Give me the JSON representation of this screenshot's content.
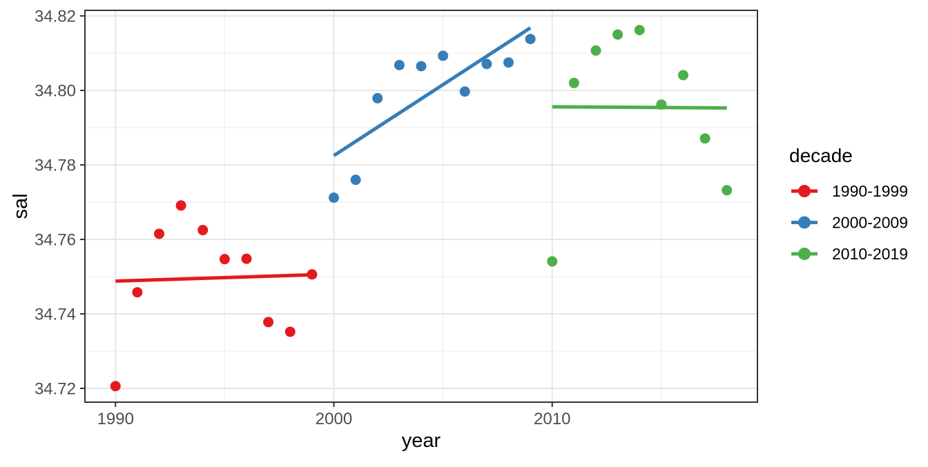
{
  "chart_data": {
    "type": "scatter",
    "title": "",
    "xlabel": "year",
    "ylabel": "sal",
    "grid": true,
    "xlim": [
      1988.6,
      2019.4
    ],
    "ylim": [
      34.7163,
      34.8215
    ],
    "x_ticks": [
      1990,
      2000,
      2010
    ],
    "x_tick_labels": [
      "1990",
      "2000",
      "2010"
    ],
    "x_minor_ticks": [
      1995,
      2005,
      2015
    ],
    "y_ticks": [
      34.72,
      34.74,
      34.76,
      34.78,
      34.8,
      34.82
    ],
    "y_tick_labels": [
      "34.72",
      "34.74",
      "34.76",
      "34.78",
      "34.80",
      "34.82"
    ],
    "y_minor_ticks": [
      34.73,
      34.75,
      34.77,
      34.79,
      34.81
    ],
    "legend": {
      "title": "decade",
      "position": "right",
      "entries": [
        {
          "label": "1990-1999",
          "color": "#E41A1C"
        },
        {
          "label": "2000-2009",
          "color": "#377EB8"
        },
        {
          "label": "2010-2019",
          "color": "#4DAF4A"
        }
      ]
    },
    "series": [
      {
        "name": "1990-1999",
        "color": "#E41A1C",
        "points": [
          [
            1990,
            34.7206
          ],
          [
            1991,
            34.7458
          ],
          [
            1992,
            34.7615
          ],
          [
            1993,
            34.7691
          ],
          [
            1994,
            34.7625
          ],
          [
            1995,
            34.7547
          ],
          [
            1996,
            34.7548
          ],
          [
            1997,
            34.7378
          ],
          [
            1998,
            34.7352
          ],
          [
            1999,
            34.7506
          ]
        ],
        "trend": [
          [
            1990,
            34.7488
          ],
          [
            1999,
            34.7505
          ]
        ]
      },
      {
        "name": "2000-2009",
        "color": "#377EB8",
        "points": [
          [
            2000,
            34.7712
          ],
          [
            2001,
            34.776
          ],
          [
            2002,
            34.7979
          ],
          [
            2003,
            34.8068
          ],
          [
            2004,
            34.8065
          ],
          [
            2005,
            34.8093
          ],
          [
            2006,
            34.7997
          ],
          [
            2007,
            34.8071
          ],
          [
            2008,
            34.8075
          ],
          [
            2009,
            34.8138
          ]
        ],
        "trend": [
          [
            2000,
            34.7825
          ],
          [
            2009,
            34.8168
          ]
        ]
      },
      {
        "name": "2010-2019",
        "color": "#4DAF4A",
        "points": [
          [
            2010,
            34.7541
          ],
          [
            2011,
            34.802
          ],
          [
            2012,
            34.8107
          ],
          [
            2013,
            34.815
          ],
          [
            2014,
            34.8162
          ],
          [
            2015,
            34.7962
          ],
          [
            2016,
            34.8041
          ],
          [
            2017,
            34.7871
          ],
          [
            2018,
            34.7732
          ]
        ],
        "trend": [
          [
            2010,
            34.7956
          ],
          [
            2018,
            34.7953
          ]
        ]
      }
    ]
  },
  "theme": {
    "background": "#FFFFFF",
    "panel_background": "#FFFFFF",
    "panel_border": "#333333",
    "grid_major": "#E5E5E5",
    "grid_minor": "#F0F0F0",
    "tick_mark": "#333333",
    "tick_label_color": "#4D4D4D",
    "axis_title_color": "#000000",
    "legend_text_color": "#000000"
  }
}
